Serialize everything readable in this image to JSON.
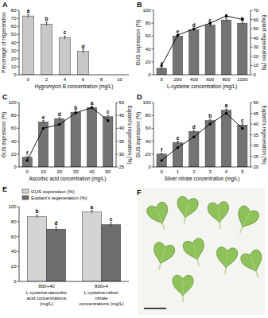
{
  "chart_data": [
    {
      "type": "bar",
      "title": "A",
      "xlabel": "Hygromycin B concentration (mg/L)",
      "ylabel": "Percentage of regeneration",
      "categories": [
        "0",
        "2",
        "4",
        "6",
        "8",
        "10"
      ],
      "values": [
        73,
        63,
        46,
        29,
        0,
        0
      ],
      "errors": [
        2,
        2,
        2,
        2,
        0,
        0
      ],
      "annotations": [
        "a",
        "b",
        "c",
        "d",
        null,
        null
      ],
      "color": "#c8c8c8",
      "ylim": [
        0,
        80
      ],
      "yticks": [
        0,
        10,
        20,
        30,
        40,
        50,
        60,
        70,
        80
      ],
      "grid": false
    },
    {
      "type": "bar",
      "title": "B",
      "xlabel": "L-cysteine concentration (mg/L)",
      "ylabel": "GUS expression (%)",
      "y2label": "Explant regeneration (%)",
      "categories": [
        "0",
        "200",
        "400",
        "600",
        "800",
        "1000"
      ],
      "series": [
        {
          "type": "bar",
          "color": "#737373",
          "values": [
            10,
            60,
            70,
            77,
            85,
            80
          ],
          "errors": [
            1,
            2,
            2,
            2,
            2,
            2
          ],
          "annotations": [
            "f",
            "e",
            "d",
            "c",
            "a",
            "b"
          ]
        },
        {
          "type": "line",
          "axis": "y2",
          "color": "#000000",
          "marker": "circle",
          "values": [
            10,
            43,
            50,
            56,
            64,
            60
          ]
        }
      ],
      "ylim": [
        0,
        100
      ],
      "yticks": [
        0,
        20,
        40,
        60,
        80,
        100
      ],
      "y2lim": [
        0,
        70
      ],
      "y2ticks": [
        0,
        10,
        20,
        30,
        40,
        50,
        60,
        70
      ],
      "grid": false
    },
    {
      "type": "bar",
      "title": "C",
      "xlabel": "Ascorbic acid concentration (mg/L)",
      "ylabel": "GUS expression (%)",
      "y2label": "Explant's regeneration (%)",
      "categories": [
        "0",
        "10",
        "20",
        "30",
        "40",
        "50"
      ],
      "series": [
        {
          "type": "bar",
          "color": "#737373",
          "values": [
            15,
            70,
            75,
            85,
            92,
            78
          ],
          "errors": [
            1,
            2,
            2,
            2,
            2,
            2
          ],
          "annotations": [
            "f",
            "e",
            "d",
            "b",
            "a",
            "c"
          ]
        },
        {
          "type": "line",
          "axis": "y2",
          "color": "#000000",
          "marker": "circle",
          "values": [
            27.5,
            40,
            41.5,
            46,
            48,
            43
          ]
        }
      ],
      "ylim": [
        0,
        100
      ],
      "yticks": [
        0,
        20,
        40,
        60,
        80,
        100
      ],
      "y2lim": [
        25,
        50
      ],
      "y2ticks": [
        25,
        30,
        35,
        40,
        45,
        50
      ],
      "grid": false
    },
    {
      "type": "bar",
      "title": "D",
      "xlabel": "Silver nitrate concentration (mg/L)",
      "ylabel": "GUS expression (%)",
      "y2label": "Explant's regeneration (%)",
      "categories": [
        "0",
        "1",
        "2",
        "3",
        "4",
        "5"
      ],
      "series": [
        {
          "type": "bar",
          "color": "#737373",
          "values": [
            20,
            38,
            55,
            72,
            88,
            65
          ],
          "errors": [
            1,
            2,
            2,
            2,
            2,
            2
          ],
          "annotations": [
            "f",
            "e",
            "d",
            "b",
            "a",
            "c"
          ]
        },
        {
          "type": "line",
          "axis": "y2",
          "color": "#000000",
          "marker": "circle",
          "values": [
            23,
            29,
            34,
            40,
            45,
            38
          ]
        }
      ],
      "ylim": [
        0,
        100
      ],
      "yticks": [
        0,
        20,
        40,
        60,
        80,
        100
      ],
      "y2lim": [
        20,
        50
      ],
      "y2ticks": [
        20,
        25,
        30,
        35,
        40,
        45,
        50
      ],
      "grid": false
    },
    {
      "type": "bar",
      "title": "E",
      "legend": "top",
      "categories": [
        "800+40",
        "800+4"
      ],
      "category_notes": [
        "L-cysteine+ascorbic acid concentrations (mg/L)",
        "L-cysteine+silver nitrate concentrations (mg/L)"
      ],
      "series": [
        {
          "name": "GUS expression (%)",
          "type": "bar",
          "color": "#d4d4d4",
          "values": [
            87,
            93
          ],
          "errors": [
            2,
            2
          ],
          "annotations": [
            "b",
            "a"
          ]
        },
        {
          "name": "Explant's regeneration (%)",
          "type": "bar",
          "color": "#6e6e6e",
          "values": [
            70,
            76
          ],
          "errors": [
            3,
            3
          ],
          "annotations": [
            "d",
            "c"
          ]
        }
      ],
      "ylim": [
        0,
        100
      ],
      "yticks": [
        0,
        20,
        40,
        60,
        80,
        100
      ],
      "grid": false
    }
  ],
  "image_panel": {
    "label": "F"
  }
}
